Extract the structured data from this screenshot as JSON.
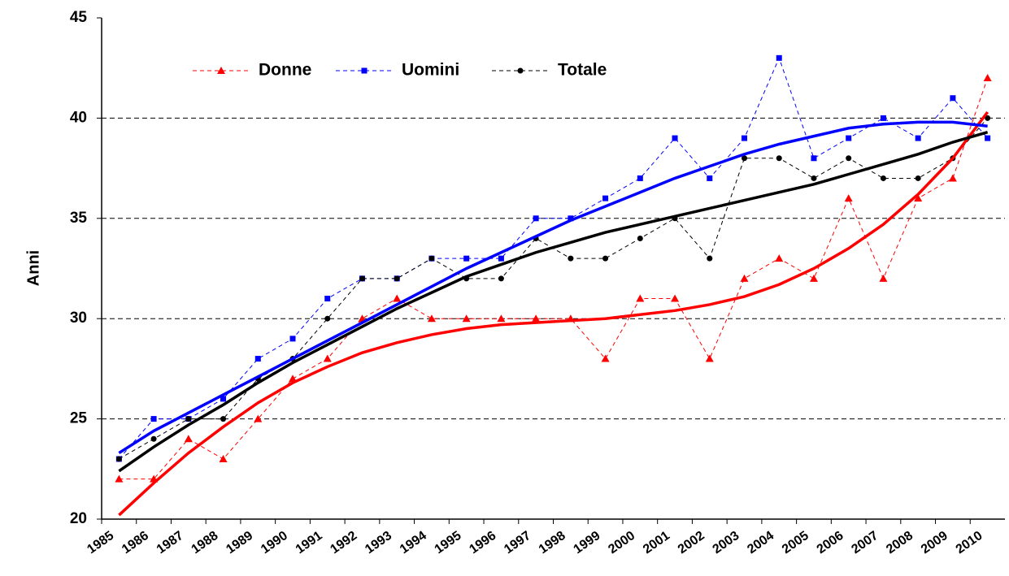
{
  "chart_data": {
    "type": "line",
    "y_label": "Anni",
    "categories": [
      "1985",
      "1986",
      "1987",
      "1988",
      "1989",
      "1990",
      "1991",
      "1992",
      "1993",
      "1994",
      "1995",
      "1996",
      "1997",
      "1998",
      "1999",
      "2000",
      "2001",
      "2002",
      "2003",
      "2004",
      "2005",
      "2006",
      "2007",
      "2008",
      "2009",
      "2010"
    ],
    "series": [
      {
        "name": "Donne",
        "color": "#ff0000",
        "marker": "triangle",
        "values": [
          22,
          22,
          24,
          23,
          25,
          27,
          28,
          30,
          31,
          30,
          30,
          30,
          30,
          30,
          28,
          31,
          31,
          28,
          32,
          33,
          32,
          36,
          32,
          36,
          37,
          42
        ]
      },
      {
        "name": "Uomini",
        "color": "#0000ff",
        "marker": "square",
        "values": [
          23,
          25,
          25,
          26,
          28,
          29,
          31,
          32,
          32,
          33,
          33,
          33,
          35,
          35,
          36,
          37,
          39,
          37,
          39,
          43,
          38,
          39,
          40,
          39,
          41,
          39
        ]
      },
      {
        "name": "Totale",
        "color": "#000000",
        "marker": "circle",
        "values": [
          23,
          24,
          25,
          25,
          27,
          28,
          30,
          32,
          32,
          33,
          32,
          32,
          34,
          33,
          33,
          34,
          35,
          33,
          38,
          38,
          37,
          38,
          37,
          37,
          38,
          40
        ]
      }
    ],
    "trendlines": [
      {
        "color": "#ff0000",
        "values": [
          20.2,
          21.8,
          23.3,
          24.6,
          25.8,
          26.8,
          27.6,
          28.3,
          28.8,
          29.2,
          29.5,
          29.7,
          29.8,
          29.9,
          30.0,
          30.2,
          30.4,
          30.7,
          31.1,
          31.7,
          32.5,
          33.5,
          34.7,
          36.2,
          38.0,
          40.3
        ]
      },
      {
        "color": "#0000ff",
        "values": [
          23.3,
          24.4,
          25.3,
          26.2,
          27.1,
          28.0,
          28.9,
          29.8,
          30.7,
          31.6,
          32.5,
          33.3,
          34.1,
          34.9,
          35.6,
          36.3,
          37.0,
          37.6,
          38.2,
          38.7,
          39.1,
          39.5,
          39.7,
          39.8,
          39.8,
          39.6
        ]
      },
      {
        "color": "#000000",
        "values": [
          22.4,
          23.6,
          24.7,
          25.7,
          26.8,
          27.8,
          28.7,
          29.6,
          30.5,
          31.3,
          32.1,
          32.7,
          33.3,
          33.8,
          34.3,
          34.7,
          35.1,
          35.5,
          35.9,
          36.3,
          36.7,
          37.2,
          37.7,
          38.2,
          38.8,
          39.3
        ]
      }
    ],
    "ylim": [
      20,
      45
    ],
    "yticks": [
      20,
      25,
      30,
      35,
      40,
      45
    ],
    "grid": true,
    "legend": "top-left"
  }
}
